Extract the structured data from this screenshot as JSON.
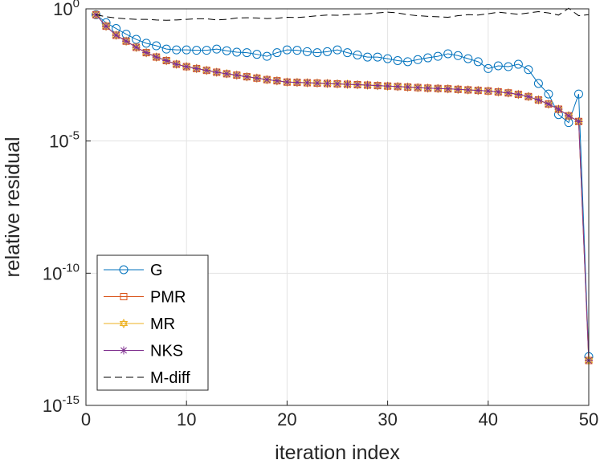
{
  "chart_data": {
    "type": "line",
    "xlabel": "iteration index",
    "ylabel": "relative residual",
    "xlim": [
      0,
      50
    ],
    "ylim": [
      1e-15,
      1
    ],
    "yscale": "log",
    "grid": true,
    "legend_position": "bottom-left",
    "xticks": [
      "0",
      "10",
      "20",
      "30",
      "40",
      "50"
    ],
    "yticks": [
      {
        "base": "10",
        "exp": "0",
        "value": 1
      },
      {
        "base": "10",
        "exp": "-5",
        "value": 1e-05
      },
      {
        "base": "10",
        "exp": "-10",
        "value": 1e-10
      },
      {
        "base": "10",
        "exp": "-15",
        "value": 1e-15
      }
    ],
    "x": [
      1,
      2,
      3,
      4,
      5,
      6,
      7,
      8,
      9,
      10,
      11,
      12,
      13,
      14,
      15,
      16,
      17,
      18,
      19,
      20,
      21,
      22,
      23,
      24,
      25,
      26,
      27,
      28,
      29,
      30,
      31,
      32,
      33,
      34,
      35,
      36,
      37,
      38,
      39,
      40,
      41,
      42,
      43,
      44,
      45,
      46,
      47,
      48,
      49,
      50
    ],
    "series": [
      {
        "name": "G",
        "color": "#0072BD",
        "marker": "circle",
        "values": [
          0.6,
          0.3,
          0.18,
          0.11,
          0.07,
          0.05,
          0.04,
          0.03,
          0.028,
          0.028,
          0.027,
          0.027,
          0.03,
          0.026,
          0.023,
          0.022,
          0.019,
          0.016,
          0.022,
          0.028,
          0.027,
          0.024,
          0.022,
          0.024,
          0.028,
          0.022,
          0.018,
          0.015,
          0.015,
          0.013,
          0.011,
          0.01,
          0.012,
          0.014,
          0.016,
          0.02,
          0.017,
          0.013,
          0.01,
          0.0055,
          0.007,
          0.0065,
          0.008,
          0.005,
          0.0015,
          0.0006,
          0.0001,
          5e-05,
          0.0006,
          7e-14
        ]
      },
      {
        "name": "PMR",
        "color": "#D95319",
        "marker": "square",
        "values": [
          0.6,
          0.22,
          0.1,
          0.06,
          0.035,
          0.022,
          0.015,
          0.011,
          0.008,
          0.0065,
          0.0055,
          0.0047,
          0.004,
          0.0035,
          0.0031,
          0.0027,
          0.0024,
          0.0021,
          0.0019,
          0.0017,
          0.00165,
          0.0016,
          0.00155,
          0.0015,
          0.00145,
          0.0014,
          0.00135,
          0.0013,
          0.00125,
          0.0012,
          0.00115,
          0.0011,
          0.00105,
          0.001,
          0.00097,
          0.00094,
          0.0009,
          0.00086,
          0.00082,
          0.00078,
          0.00072,
          0.00066,
          0.00058,
          0.00048,
          0.00036,
          0.00025,
          0.00016,
          9e-05,
          5.5e-05,
          5e-14
        ]
      },
      {
        "name": "MR",
        "color": "#EDB120",
        "marker": "hexagram",
        "values": [
          0.6,
          0.22,
          0.1,
          0.06,
          0.035,
          0.022,
          0.015,
          0.011,
          0.008,
          0.0065,
          0.0055,
          0.0047,
          0.004,
          0.0035,
          0.0031,
          0.0027,
          0.0024,
          0.0021,
          0.0019,
          0.0017,
          0.00165,
          0.0016,
          0.00155,
          0.0015,
          0.00145,
          0.0014,
          0.00135,
          0.0013,
          0.00125,
          0.0012,
          0.00115,
          0.0011,
          0.00105,
          0.001,
          0.00097,
          0.00094,
          0.0009,
          0.00086,
          0.00082,
          0.00078,
          0.00072,
          0.00066,
          0.00058,
          0.00048,
          0.00036,
          0.00025,
          0.00016,
          9e-05,
          5.5e-05,
          5e-14
        ]
      },
      {
        "name": "NKS",
        "color": "#7E2F8E",
        "marker": "asterisk",
        "values": [
          0.6,
          0.22,
          0.1,
          0.06,
          0.035,
          0.022,
          0.015,
          0.011,
          0.008,
          0.0065,
          0.0055,
          0.0047,
          0.004,
          0.0035,
          0.0031,
          0.0027,
          0.0024,
          0.0021,
          0.0019,
          0.0017,
          0.00165,
          0.0016,
          0.00155,
          0.0015,
          0.00145,
          0.0014,
          0.00135,
          0.0013,
          0.00125,
          0.0012,
          0.00115,
          0.0011,
          0.00105,
          0.001,
          0.00097,
          0.00094,
          0.0009,
          0.00086,
          0.00082,
          0.00078,
          0.00072,
          0.00066,
          0.00058,
          0.00048,
          0.00036,
          0.00025,
          0.00016,
          9e-05,
          5.5e-05,
          5e-14
        ]
      },
      {
        "name": "M-diff",
        "color": "#000000",
        "marker": "none",
        "dash": "dashed",
        "values": [
          0.6,
          0.5,
          0.45,
          0.42,
          0.4,
          0.4,
          0.38,
          0.37,
          0.38,
          0.4,
          0.42,
          0.42,
          0.38,
          0.4,
          0.45,
          0.46,
          0.45,
          0.43,
          0.44,
          0.48,
          0.47,
          0.5,
          0.55,
          0.58,
          0.57,
          0.6,
          0.63,
          0.65,
          0.7,
          0.75,
          0.7,
          0.6,
          0.55,
          0.52,
          0.5,
          0.48,
          0.55,
          0.6,
          0.58,
          0.65,
          0.75,
          0.68,
          0.62,
          0.7,
          0.78,
          0.7,
          0.58,
          1.05,
          0.55,
          0.6
        ]
      }
    ]
  }
}
